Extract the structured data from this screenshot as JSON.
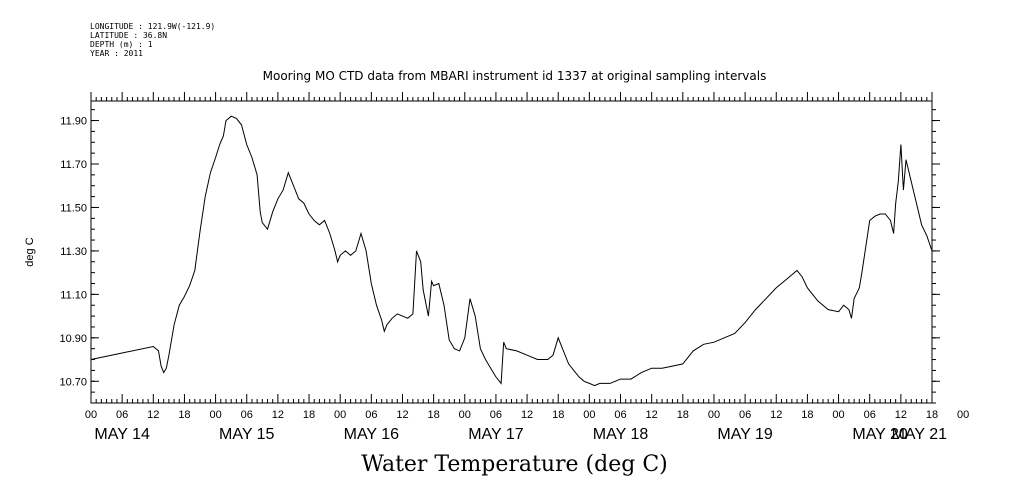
{
  "metadata": {
    "longitude": "LONGITUDE : 121.9W(-121.9)",
    "latitude": "LATITUDE : 36.8N",
    "depth": "DEPTH (m) : 1",
    "year": "YEAR : 2011"
  },
  "chart_data": {
    "type": "line",
    "title": "Mooring MO CTD data from MBARI instrument id 1337 at original sampling intervals",
    "bottom_title": "Water Temperature (deg C)",
    "ylabel": "deg C",
    "xlabel": "",
    "ylim": [
      10.6,
      11.99
    ],
    "xlim": [
      0,
      162
    ],
    "x_units": "hours since MAY 14 00",
    "yticks": [
      "10.70",
      "10.90",
      "11.10",
      "11.30",
      "11.50",
      "11.70",
      "11.90"
    ],
    "ytick_values": [
      10.7,
      10.9,
      11.1,
      11.3,
      11.5,
      11.7,
      11.9
    ],
    "hour_ticks": [
      "00",
      "06",
      "12",
      "18",
      "00",
      "06",
      "12",
      "18",
      "00",
      "06",
      "12",
      "18",
      "00",
      "06",
      "12",
      "18",
      "00",
      "06",
      "12",
      "18",
      "00",
      "06",
      "12",
      "18",
      "00",
      "06",
      "12",
      "18",
      "00"
    ],
    "day_labels": [
      "MAY 14",
      "MAY 15",
      "MAY 16",
      "MAY 17",
      "MAY 18",
      "MAY 19",
      "MAY 20",
      "MAY 21"
    ],
    "grid": false,
    "series": [
      {
        "color": "#000000",
        "points": [
          [
            0,
            10.8
          ],
          [
            6,
            10.83
          ],
          [
            12,
            10.86
          ],
          [
            13,
            10.84
          ],
          [
            13.5,
            10.77
          ],
          [
            14,
            10.74
          ],
          [
            14.5,
            10.76
          ],
          [
            15,
            10.82
          ],
          [
            16,
            10.96
          ],
          [
            17,
            11.05
          ],
          [
            18,
            11.09
          ],
          [
            19,
            11.14
          ],
          [
            20,
            11.21
          ],
          [
            21,
            11.39
          ],
          [
            22,
            11.55
          ],
          [
            23,
            11.66
          ],
          [
            24,
            11.73
          ],
          [
            24.8,
            11.79
          ],
          [
            25.5,
            11.83
          ],
          [
            26,
            11.9
          ],
          [
            27,
            11.92
          ],
          [
            28,
            11.91
          ],
          [
            29,
            11.88
          ],
          [
            30,
            11.79
          ],
          [
            31,
            11.73
          ],
          [
            32,
            11.65
          ],
          [
            32.6,
            11.48
          ],
          [
            33,
            11.43
          ],
          [
            34,
            11.4
          ],
          [
            35,
            11.48
          ],
          [
            36,
            11.54
          ],
          [
            37,
            11.58
          ],
          [
            38,
            11.66
          ],
          [
            39,
            11.6
          ],
          [
            40,
            11.54
          ],
          [
            41,
            11.52
          ],
          [
            42,
            11.47
          ],
          [
            43,
            11.44
          ],
          [
            44,
            11.42
          ],
          [
            45,
            11.44
          ],
          [
            46,
            11.38
          ],
          [
            47,
            11.3
          ],
          [
            47.5,
            11.25
          ],
          [
            48,
            11.28
          ],
          [
            49,
            11.3
          ],
          [
            50,
            11.28
          ],
          [
            51,
            11.3
          ],
          [
            52,
            11.38
          ],
          [
            53,
            11.3
          ],
          [
            54,
            11.15
          ],
          [
            55,
            11.05
          ],
          [
            56,
            10.98
          ],
          [
            56.5,
            10.93
          ],
          [
            57,
            10.96
          ],
          [
            58,
            10.99
          ],
          [
            59,
            11.01
          ],
          [
            60,
            11.0
          ],
          [
            61,
            10.99
          ],
          [
            62,
            11.01
          ],
          [
            62.7,
            11.3
          ],
          [
            63.5,
            11.25
          ],
          [
            64,
            11.12
          ],
          [
            65,
            11.0
          ],
          [
            65.6,
            11.16
          ],
          [
            66,
            11.14
          ],
          [
            67,
            11.15
          ],
          [
            68,
            11.05
          ],
          [
            69,
            10.89
          ],
          [
            70,
            10.85
          ],
          [
            71,
            10.84
          ],
          [
            72,
            10.9
          ],
          [
            73,
            11.08
          ],
          [
            74,
            11.0
          ],
          [
            75,
            10.85
          ],
          [
            76,
            10.8
          ],
          [
            77,
            10.76
          ],
          [
            78,
            10.72
          ],
          [
            79,
            10.69
          ],
          [
            79.5,
            10.88
          ],
          [
            80,
            10.85
          ],
          [
            82,
            10.84
          ],
          [
            84,
            10.82
          ],
          [
            86,
            10.8
          ],
          [
            88,
            10.8
          ],
          [
            89,
            10.82
          ],
          [
            90,
            10.9
          ],
          [
            91,
            10.84
          ],
          [
            92,
            10.78
          ],
          [
            93,
            10.75
          ],
          [
            94,
            10.72
          ],
          [
            95,
            10.7
          ],
          [
            96,
            10.69
          ],
          [
            97,
            10.68
          ],
          [
            98,
            10.69
          ],
          [
            100,
            10.69
          ],
          [
            102,
            10.71
          ],
          [
            104,
            10.71
          ],
          [
            106,
            10.74
          ],
          [
            108,
            10.76
          ],
          [
            110,
            10.76
          ],
          [
            112,
            10.77
          ],
          [
            114,
            10.78
          ],
          [
            116,
            10.84
          ],
          [
            118,
            10.87
          ],
          [
            120,
            10.88
          ],
          [
            122,
            10.9
          ],
          [
            124,
            10.92
          ],
          [
            126,
            10.97
          ],
          [
            128,
            11.03
          ],
          [
            130,
            11.08
          ],
          [
            132,
            11.13
          ],
          [
            134,
            11.17
          ],
          [
            136,
            11.21
          ],
          [
            137,
            11.18
          ],
          [
            138,
            11.13
          ],
          [
            140,
            11.07
          ],
          [
            142,
            11.03
          ],
          [
            144,
            11.02
          ],
          [
            145,
            11.05
          ],
          [
            146,
            11.03
          ],
          [
            146.5,
            10.99
          ],
          [
            147,
            11.08
          ],
          [
            148,
            11.13
          ],
          [
            148.5,
            11.2
          ],
          [
            149,
            11.28
          ],
          [
            150,
            11.44
          ],
          [
            151,
            11.46
          ],
          [
            152,
            11.47
          ],
          [
            153,
            11.47
          ],
          [
            154,
            11.44
          ],
          [
            154.6,
            11.38
          ],
          [
            155,
            11.52
          ],
          [
            155.5,
            11.62
          ],
          [
            156,
            11.79
          ],
          [
            156.5,
            11.58
          ],
          [
            157,
            11.72
          ],
          [
            158,
            11.62
          ],
          [
            159,
            11.52
          ],
          [
            160,
            11.42
          ],
          [
            161,
            11.37
          ],
          [
            162,
            11.3
          ]
        ]
      }
    ]
  }
}
